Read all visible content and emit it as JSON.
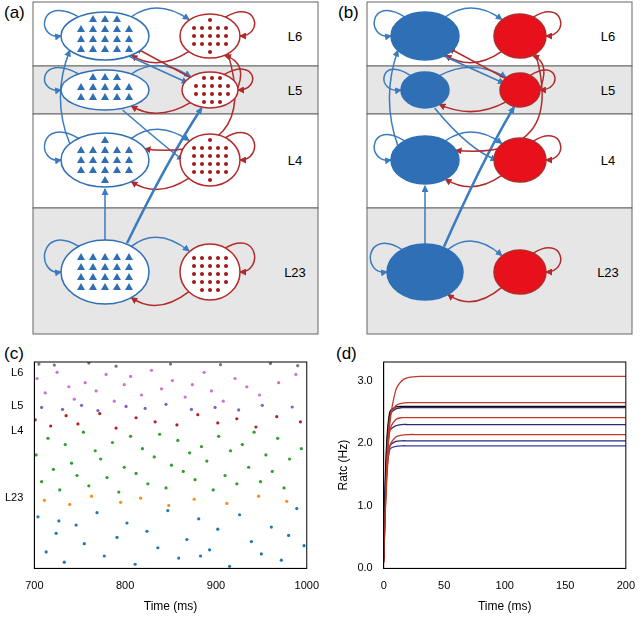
{
  "diagrams": [
    {
      "label": "(a)",
      "layers": [
        "L6",
        "L5",
        "L4",
        "L23"
      ]
    },
    {
      "label": "(b)",
      "layers": [
        "L6",
        "L5",
        "L4",
        "L23"
      ]
    }
  ],
  "chart_data": [
    {
      "label": "(c)",
      "type": "scatter",
      "x_label": "Time (ms)",
      "xlim": [
        700,
        1000
      ],
      "xticks": [
        700,
        800,
        900,
        1000
      ],
      "ylim": [
        0,
        100
      ],
      "yticks": [
        {
          "value": 94.6,
          "label": "L6"
        },
        {
          "value": 78.8,
          "label": "L5"
        },
        {
          "value": 66.7,
          "label": "L4"
        },
        {
          "value": 34.2,
          "label": "L23"
        }
      ],
      "grid": false,
      "marker": "dot",
      "series": [
        {
          "color": "#777777",
          "x": [
            705,
            722,
            760,
            790,
            850,
            905,
            960,
            990
          ],
          "values": [
            99,
            98.5,
            99.5,
            98,
            99,
            98.7,
            99.3,
            98.2
          ]
        },
        {
          "color": "#d070d0",
          "x": [
            703,
            712,
            725,
            738,
            744,
            756,
            768,
            779,
            788,
            799,
            806,
            818,
            829,
            840,
            852,
            866,
            874,
            887,
            895,
            908,
            921,
            934,
            948,
            969,
            988
          ],
          "values": [
            92,
            85,
            95,
            88,
            82,
            90,
            86,
            94,
            81,
            89,
            93,
            84,
            96,
            87,
            91,
            83,
            89,
            95,
            86,
            81,
            92,
            88,
            84,
            90,
            94
          ]
        },
        {
          "color": "#8060c0",
          "x": [
            708,
            731,
            752,
            770,
            801,
            822,
            845,
            873,
            899,
            925,
            951,
            984
          ],
          "values": [
            78,
            77,
            79,
            76.5,
            78.5,
            77.5,
            79.5,
            77,
            78,
            76.8,
            79,
            78.2
          ]
        },
        {
          "color": "#b22222",
          "x": [
            701,
            718,
            735,
            748,
            772,
            790,
            812,
            833,
            857,
            880,
            902,
            923,
            944,
            967,
            993
          ],
          "values": [
            72,
            69,
            74,
            70,
            75,
            68,
            73,
            71,
            69.5,
            74.5,
            70.5,
            72.5,
            68.5,
            73.5,
            71
          ]
        },
        {
          "color": "#2ca02c",
          "x": [
            702,
            708,
            715,
            721,
            728,
            734,
            741,
            747,
            754,
            760,
            767,
            773,
            780,
            786,
            793,
            799,
            806,
            812,
            819,
            825,
            832,
            838,
            845,
            851,
            858,
            864,
            871,
            877,
            884,
            890,
            897,
            903,
            910,
            916,
            923,
            929,
            936,
            942,
            949,
            955,
            962,
            968,
            975,
            981,
            994
          ],
          "values": [
            55,
            42,
            63,
            48,
            38,
            60,
            51,
            45,
            66,
            40,
            57,
            53,
            44,
            61,
            37,
            49,
            64,
            46,
            58,
            41,
            54,
            65,
            39,
            50,
            62,
            47,
            56,
            43,
            59,
            52,
            38,
            64,
            45,
            57,
            41,
            60,
            49,
            66,
            42,
            55,
            47,
            63,
            39,
            53,
            58
          ]
        },
        {
          "color": "#ff8c1a",
          "x": [
            711,
            739,
            763,
            795,
            817,
            848,
            876,
            912,
            947,
            978
          ],
          "values": [
            33,
            31,
            35,
            32,
            34,
            30.5,
            33.5,
            31.5,
            35,
            32.5
          ]
        },
        {
          "color": "#1f77b4",
          "x": [
            704,
            713,
            724,
            733,
            746,
            755,
            769,
            777,
            791,
            802,
            811,
            824,
            836,
            847,
            859,
            868,
            881,
            893,
            902,
            915,
            926,
            939,
            950,
            961,
            972,
            980,
            989,
            997,
            727,
            883
          ],
          "values": [
            25,
            8,
            17,
            3,
            21,
            12,
            27,
            6,
            15,
            22,
            2,
            18,
            10,
            28,
            5,
            14,
            24,
            9,
            19,
            1,
            26,
            13,
            7,
            20,
            4,
            16,
            29,
            11,
            23,
            6
          ]
        }
      ]
    },
    {
      "label": "(d)",
      "type": "line",
      "x_label": "Time (ms)",
      "y_label": "Ratc (Hz)",
      "x": [
        0,
        2,
        5,
        10,
        15,
        20,
        30,
        50,
        100,
        150,
        200
      ],
      "xlim": [
        0,
        200
      ],
      "xticks": [
        0,
        50,
        100,
        150,
        200
      ],
      "ylim": [
        0,
        3.3
      ],
      "yticks": [
        {
          "value": 0,
          "label": "0.0"
        },
        {
          "value": 1,
          "label": "1.0"
        },
        {
          "value": 2,
          "label": "2.0"
        },
        {
          "value": 3,
          "label": "3.0"
        }
      ],
      "grid": false,
      "series": [
        {
          "color": "#c0392b",
          "values": [
            0.1,
            1.3,
            2.3,
            2.85,
            3.0,
            3.05,
            3.07,
            3.07,
            3.07,
            3.07,
            3.07
          ]
        },
        {
          "color": "#c0392b",
          "values": [
            0.1,
            1.4,
            2.4,
            2.6,
            2.64,
            2.65,
            2.65,
            2.65,
            2.65,
            2.65,
            2.65
          ]
        },
        {
          "color": "#111111",
          "values": [
            0.15,
            1.8,
            2.5,
            2.58,
            2.59,
            2.59,
            2.59,
            2.59,
            2.59,
            2.59,
            2.59
          ]
        },
        {
          "color": "#2b2b7a",
          "values": [
            0.15,
            1.7,
            2.45,
            2.55,
            2.57,
            2.57,
            2.57,
            2.57,
            2.57,
            2.57,
            2.57
          ]
        },
        {
          "color": "#c0392b",
          "values": [
            0.1,
            1.3,
            2.2,
            2.38,
            2.41,
            2.41,
            2.41,
            2.41,
            2.41,
            2.41,
            2.41
          ]
        },
        {
          "color": "#2b2b7a",
          "values": [
            0.15,
            1.6,
            2.2,
            2.28,
            2.3,
            2.3,
            2.3,
            2.3,
            2.3,
            2.3,
            2.3
          ]
        },
        {
          "color": "#c0392b",
          "values": [
            0.1,
            1.2,
            1.95,
            2.1,
            2.13,
            2.14,
            2.14,
            2.14,
            2.14,
            2.14,
            2.14
          ]
        },
        {
          "color": "#2b2b7a",
          "values": [
            0.15,
            1.5,
            1.95,
            2.03,
            2.04,
            2.04,
            2.04,
            2.04,
            2.04,
            2.04,
            2.04
          ]
        },
        {
          "color": "#3a3aa0",
          "values": [
            0.15,
            1.4,
            1.9,
            1.95,
            1.96,
            1.96,
            1.96,
            1.96,
            1.96,
            1.96,
            1.96
          ]
        }
      ]
    }
  ]
}
